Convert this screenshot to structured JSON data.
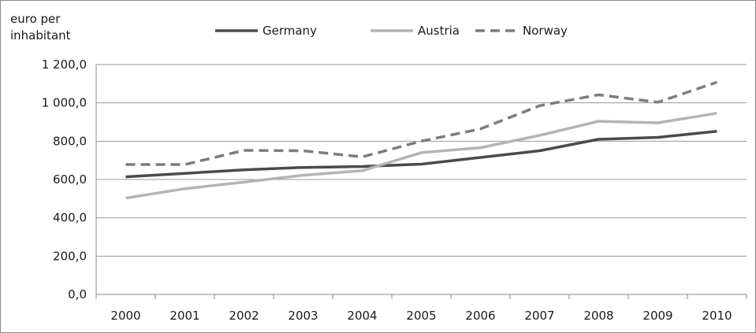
{
  "chart_data": {
    "type": "line",
    "ylabel": "euro per inhabitant",
    "ylabel_lines": [
      "euro per",
      "inhabitant"
    ],
    "categories": [
      "2000",
      "2001",
      "2002",
      "2003",
      "2004",
      "2005",
      "2006",
      "2007",
      "2008",
      "2009",
      "2010"
    ],
    "y_tick_labels": [
      "0,0",
      "200,0",
      "400,0",
      "600,0",
      "800,0",
      "1 000,0",
      "1 200,0"
    ],
    "ylim": [
      0,
      1200
    ],
    "grid": true,
    "legend_position": "top",
    "series": [
      {
        "name": "Germany",
        "color": "#4a4a4a",
        "dashed": false,
        "values": [
          614,
          632,
          650,
          663,
          668,
          680,
          715,
          750,
          810,
          820,
          852
        ]
      },
      {
        "name": "Austria",
        "color": "#b4b4b4",
        "dashed": false,
        "values": [
          503,
          552,
          586,
          622,
          646,
          740,
          766,
          830,
          904,
          896,
          946
        ]
      },
      {
        "name": "Norway",
        "color": "#7c7c7c",
        "dashed": true,
        "values": [
          678,
          678,
          752,
          750,
          718,
          800,
          864,
          985,
          1042,
          1003,
          1108
        ]
      }
    ]
  }
}
